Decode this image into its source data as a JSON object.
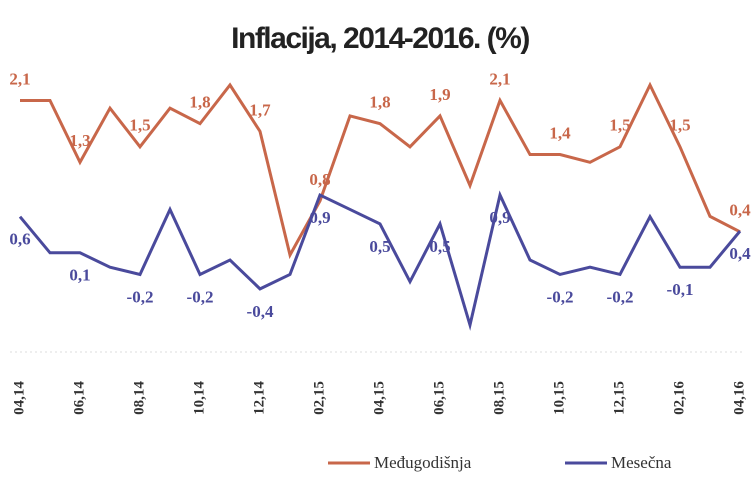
{
  "chart_data": {
    "type": "line",
    "title": "Inflacija, 2014-2016. (%)",
    "categories": [
      "04,14",
      null,
      "06,14",
      null,
      "08,14",
      null,
      "10,14",
      null,
      "12,14",
      null,
      "02,15",
      null,
      "04,15",
      null,
      "06,15",
      null,
      "08,15",
      null,
      "10,15",
      null,
      "12,15",
      null,
      "02,16",
      null,
      "04,16"
    ],
    "series": [
      {
        "name": "Međugodišnja",
        "color": "#c8674a",
        "values": [
          2.1,
          2.1,
          1.3,
          2.0,
          1.5,
          2.0,
          1.8,
          2.3,
          1.7,
          0.1,
          0.8,
          1.9,
          1.8,
          1.5,
          1.9,
          1.0,
          2.1,
          1.4,
          1.4,
          1.3,
          1.5,
          2.3,
          1.5,
          0.6,
          0.4
        ],
        "value_labels": [
          "2,1",
          null,
          "1,3",
          null,
          "1,5",
          null,
          "1,8",
          null,
          "1,7",
          null,
          "0,8",
          null,
          "1,8",
          null,
          "1,9",
          null,
          "2,1",
          null,
          "1,4",
          null,
          "1,5",
          null,
          "1,5",
          null,
          "0,4"
        ]
      },
      {
        "name": "Mesečna",
        "color": "#4a4a9c",
        "values": [
          0.6,
          0.1,
          0.1,
          -0.1,
          -0.2,
          0.7,
          -0.2,
          0.0,
          -0.4,
          -0.2,
          0.9,
          0.7,
          0.5,
          -0.3,
          0.5,
          -0.9,
          0.9,
          0.0,
          -0.2,
          -0.1,
          -0.2,
          0.6,
          -0.1,
          -0.1,
          0.4
        ],
        "value_labels": [
          "0,6",
          null,
          "0,1",
          null,
          "-0,2",
          null,
          "-0,2",
          null,
          "-0,4",
          null,
          "0,9",
          null,
          "0,5",
          null,
          "0,5",
          null,
          "0,9",
          null,
          "-0,2",
          null,
          "-0,2",
          null,
          "-0,1",
          null,
          "0,4"
        ]
      }
    ]
  }
}
